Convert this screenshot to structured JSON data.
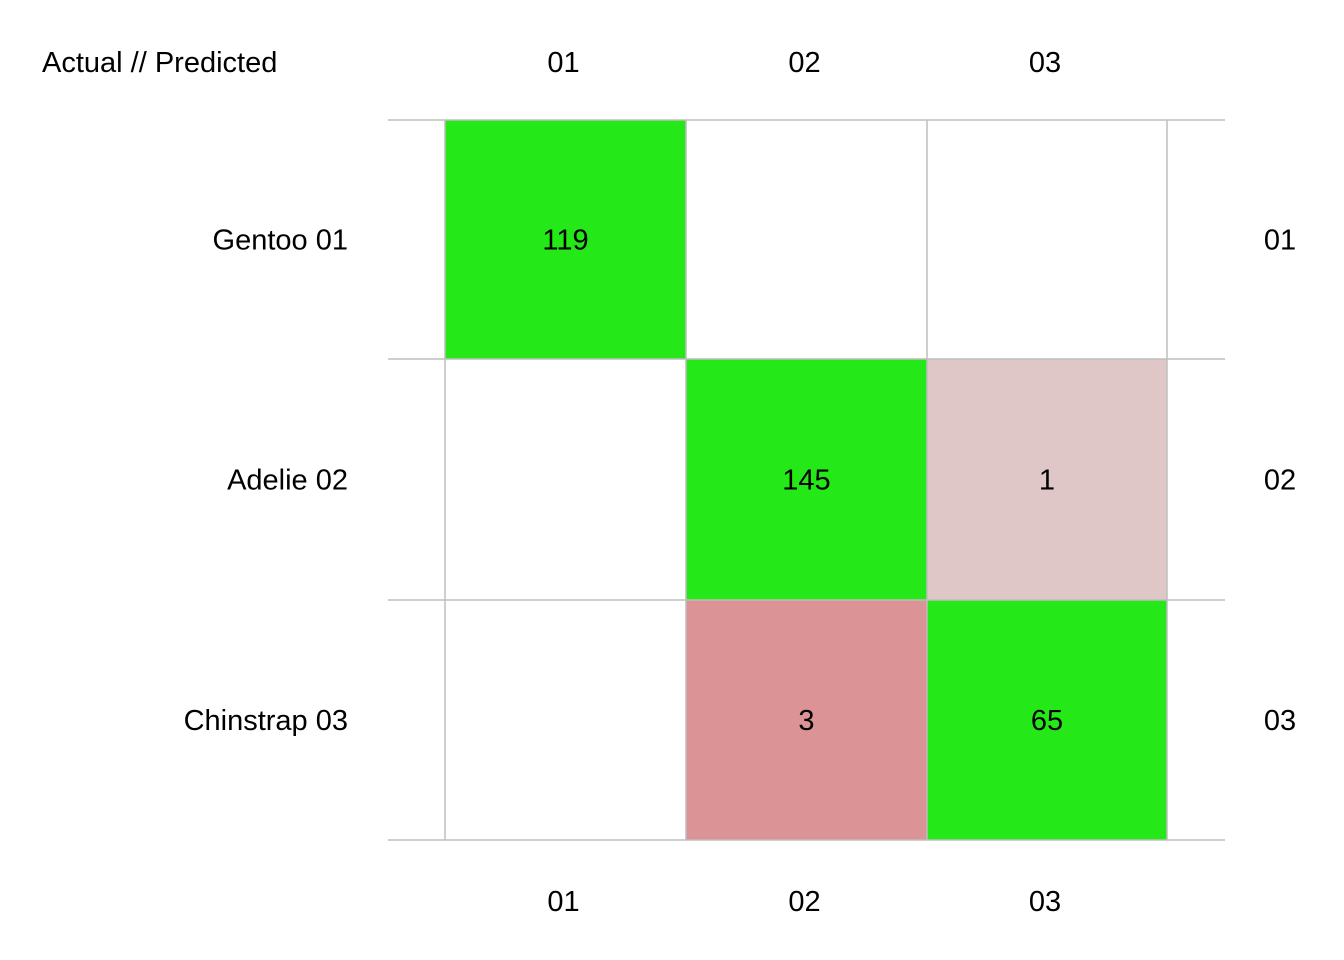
{
  "chart_data": {
    "type": "heatmap",
    "corner_label": "Actual // Predicted",
    "row_labels": [
      "Gentoo 01",
      "Adelie 02",
      "Chinstrap 03"
    ],
    "row_labels_right": [
      "01",
      "02",
      "03"
    ],
    "col_labels_top": [
      "01",
      "02",
      "03"
    ],
    "col_labels_bottom": [
      "01",
      "02",
      "03"
    ],
    "matrix": [
      [
        119,
        null,
        null
      ],
      [
        null,
        145,
        1
      ],
      [
        null,
        3,
        65
      ]
    ],
    "grid": true,
    "colors": {
      "correct": "#24e817",
      "error_high": "#dc9396",
      "error_low": "#dfc6c7",
      "empty": "#ffffff",
      "grid": "#bdbdbd",
      "text": "#000000"
    }
  }
}
